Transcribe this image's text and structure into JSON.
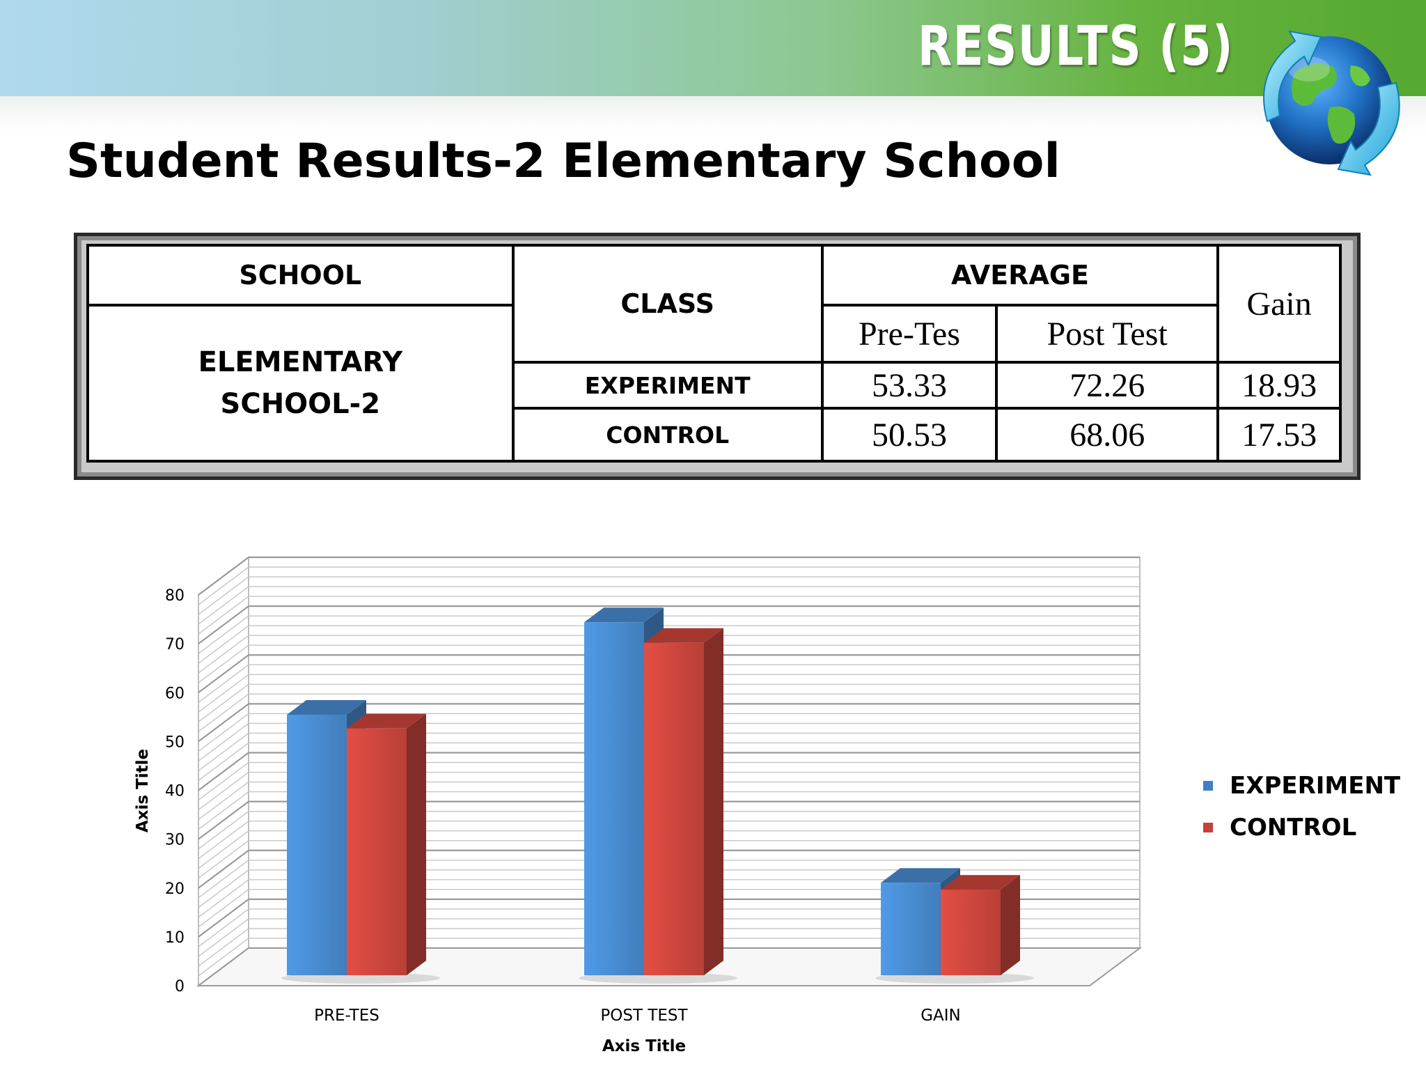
{
  "header": {
    "results_title": "RESULTS (5)",
    "page_title": "Student Results-2 Elementary School"
  },
  "table": {
    "school_header": "SCHOOL",
    "class_header": "CLASS",
    "average_header": "AVERAGE",
    "pre_header": "Pre-Tes",
    "post_header": "Post Test",
    "gain_header": "Gain",
    "school_line1": "ELEMENTARY",
    "school_line2": "SCHOOL-2",
    "rows": [
      {
        "class": "EXPERIMENT",
        "pre": "53.33",
        "post": "72.26",
        "gain": "18.93"
      },
      {
        "class": "CONTROL",
        "pre": "50.53",
        "post": "68.06",
        "gain": "17.53"
      }
    ]
  },
  "chart_data": {
    "type": "bar",
    "categories": [
      "PRE-TES",
      "POST TEST",
      "GAIN"
    ],
    "series": [
      {
        "name": "EXPERIMENT",
        "values": [
          53.33,
          72.26,
          18.93
        ],
        "color": "#4a8fd6"
      },
      {
        "name": "CONTROL",
        "values": [
          50.53,
          68.06,
          17.53
        ],
        "color": "#d2483f"
      }
    ],
    "xlabel": "Axis Title",
    "ylabel": "Axis Title",
    "ylim": [
      0,
      80
    ],
    "yticks": [
      "0",
      "10",
      "20",
      "30",
      "40",
      "50",
      "60",
      "70",
      "80"
    ],
    "grid": true,
    "legend_position": "right",
    "style": "3d-clustered-column"
  }
}
